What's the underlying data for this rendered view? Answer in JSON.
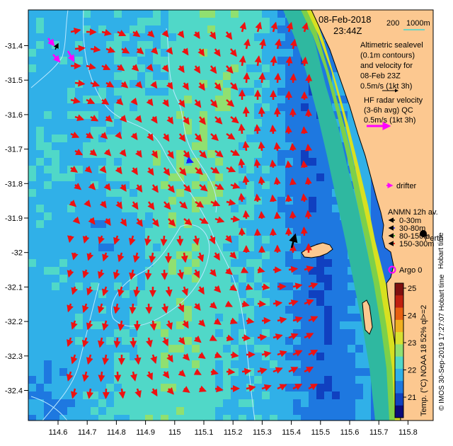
{
  "header": {
    "date": "08-Feb-2018",
    "time": "23:44Z",
    "scale_200": "200",
    "scale_1000": "1000m"
  },
  "legend": {
    "altimetric_lines": [
      "Altimetric sealevel",
      "(0.1m contours)",
      "and velocity for",
      "08-Feb 23Z",
      "0.5m/s (1kt 3h)"
    ],
    "hf_lines": [
      "HF radar velocity",
      "(3-6h avg) QC",
      "0.5m/s (1kt 3h)"
    ],
    "drifter": "drifter",
    "anmn_title": "ANMN 12h av.",
    "anmn_items": [
      {
        "label": "0-30m",
        "color": "#000000"
      },
      {
        "label": "30-80m",
        "color": "#1a1aff"
      },
      {
        "label": "80-150m",
        "color": "#00aa00"
      },
      {
        "label": "150-300m",
        "color": "#ff0000"
      }
    ],
    "city": "Perth",
    "city_side": "Hobart time",
    "argo": "Argo 0"
  },
  "colorbar": {
    "ticks": [
      "25",
      "24",
      "23",
      "22",
      "21"
    ],
    "label": "Temp. (°C) NOAA 18 52% ql>=2",
    "colors": [
      "#0a0a7a",
      "#1040c0",
      "#1e78e0",
      "#30b0e8",
      "#50d8c8",
      "#90e070",
      "#d8e030",
      "#f0b020",
      "#e86010",
      "#c02010",
      "#801010"
    ]
  },
  "credit": "© IMOS 30-Sep-2019 17:27:07 Hobart time",
  "axes": {
    "lon_ticks": [
      "114.6",
      "114.7",
      "114.8",
      "114.9",
      "115",
      "115.1",
      "115.2",
      "115.3",
      "115.4",
      "115.5",
      "115.6",
      "115.7",
      "115.8"
    ],
    "lat_ticks": [
      "-31.4",
      "-31.5",
      "-31.6",
      "-31.7",
      "-31.8",
      "-31.9",
      "-32",
      "-32.1",
      "-32.2",
      "-32.3",
      "-32.4"
    ]
  },
  "colors": {
    "land": "#fcc890",
    "arrow_altimetry": "#ee1111",
    "arrow_hf": "#ff00ff",
    "contour": "#b8e8ff"
  }
}
